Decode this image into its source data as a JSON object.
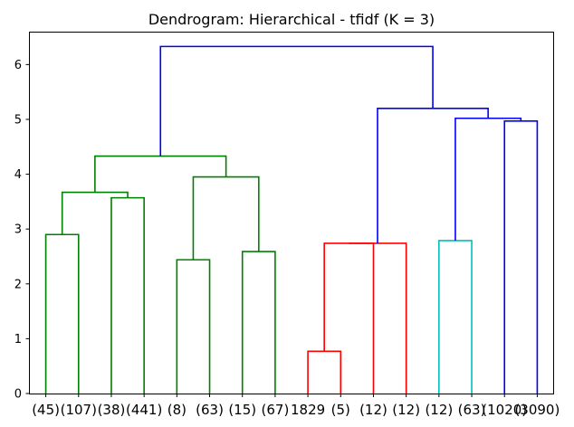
{
  "chart_data": {
    "type": "dendrogram",
    "title": "Dendrogram: Hierarchical - tfidf (K = 3)",
    "xlabel": "",
    "ylabel": "",
    "ylim": [
      0,
      6.6
    ],
    "yticks": [
      0,
      1,
      2,
      3,
      4,
      5,
      6
    ],
    "grid": false,
    "colors": {
      "green": "#008000",
      "red": "#ff0000",
      "cyan": "#00bfbf",
      "blue": "#0000ff"
    },
    "leaves": [
      "(45)",
      "(107)",
      "(38)",
      "(441)",
      "(8)",
      "(63)",
      "(15)",
      "(67)",
      "1829",
      "(5)",
      "(12)",
      "(12)",
      "(12)",
      "(63)",
      "(1020)",
      "(3090)"
    ],
    "links": [
      {
        "left": 0,
        "right": 1,
        "height": 2.9,
        "color": "green"
      },
      {
        "left": 2,
        "right": 3,
        "height": 3.57,
        "color": "green"
      },
      {
        "left": 4,
        "right": 5,
        "height": 2.44,
        "color": "green"
      },
      {
        "left": 6,
        "right": 7,
        "height": 2.59,
        "color": "green"
      },
      {
        "left": "n0",
        "right": "n1",
        "height": 3.67,
        "color": "green"
      },
      {
        "left": "n2",
        "right": "n3",
        "height": 3.95,
        "color": "green"
      },
      {
        "left": "n4",
        "right": "n5",
        "height": 4.33,
        "color": "green"
      },
      {
        "left": 8,
        "right": 9,
        "height": 0.77,
        "color": "red"
      },
      {
        "left": "n7",
        "right": 10,
        "height": 2.74,
        "color": "red"
      },
      {
        "left": "n8",
        "right": 11,
        "height": 2.74,
        "color": "red"
      },
      {
        "left": 12,
        "right": 13,
        "height": 2.79,
        "color": "cyan"
      },
      {
        "left": 14,
        "right": 15,
        "height": 4.97,
        "color": "blue"
      },
      {
        "left": "n10",
        "right": "n11",
        "height": 5.02,
        "color": "blue"
      },
      {
        "left": "n9",
        "right": "n12",
        "height": 5.2,
        "color": "blue"
      },
      {
        "left": "n6",
        "right": "n13",
        "height": 6.33,
        "color": "blue"
      }
    ]
  }
}
